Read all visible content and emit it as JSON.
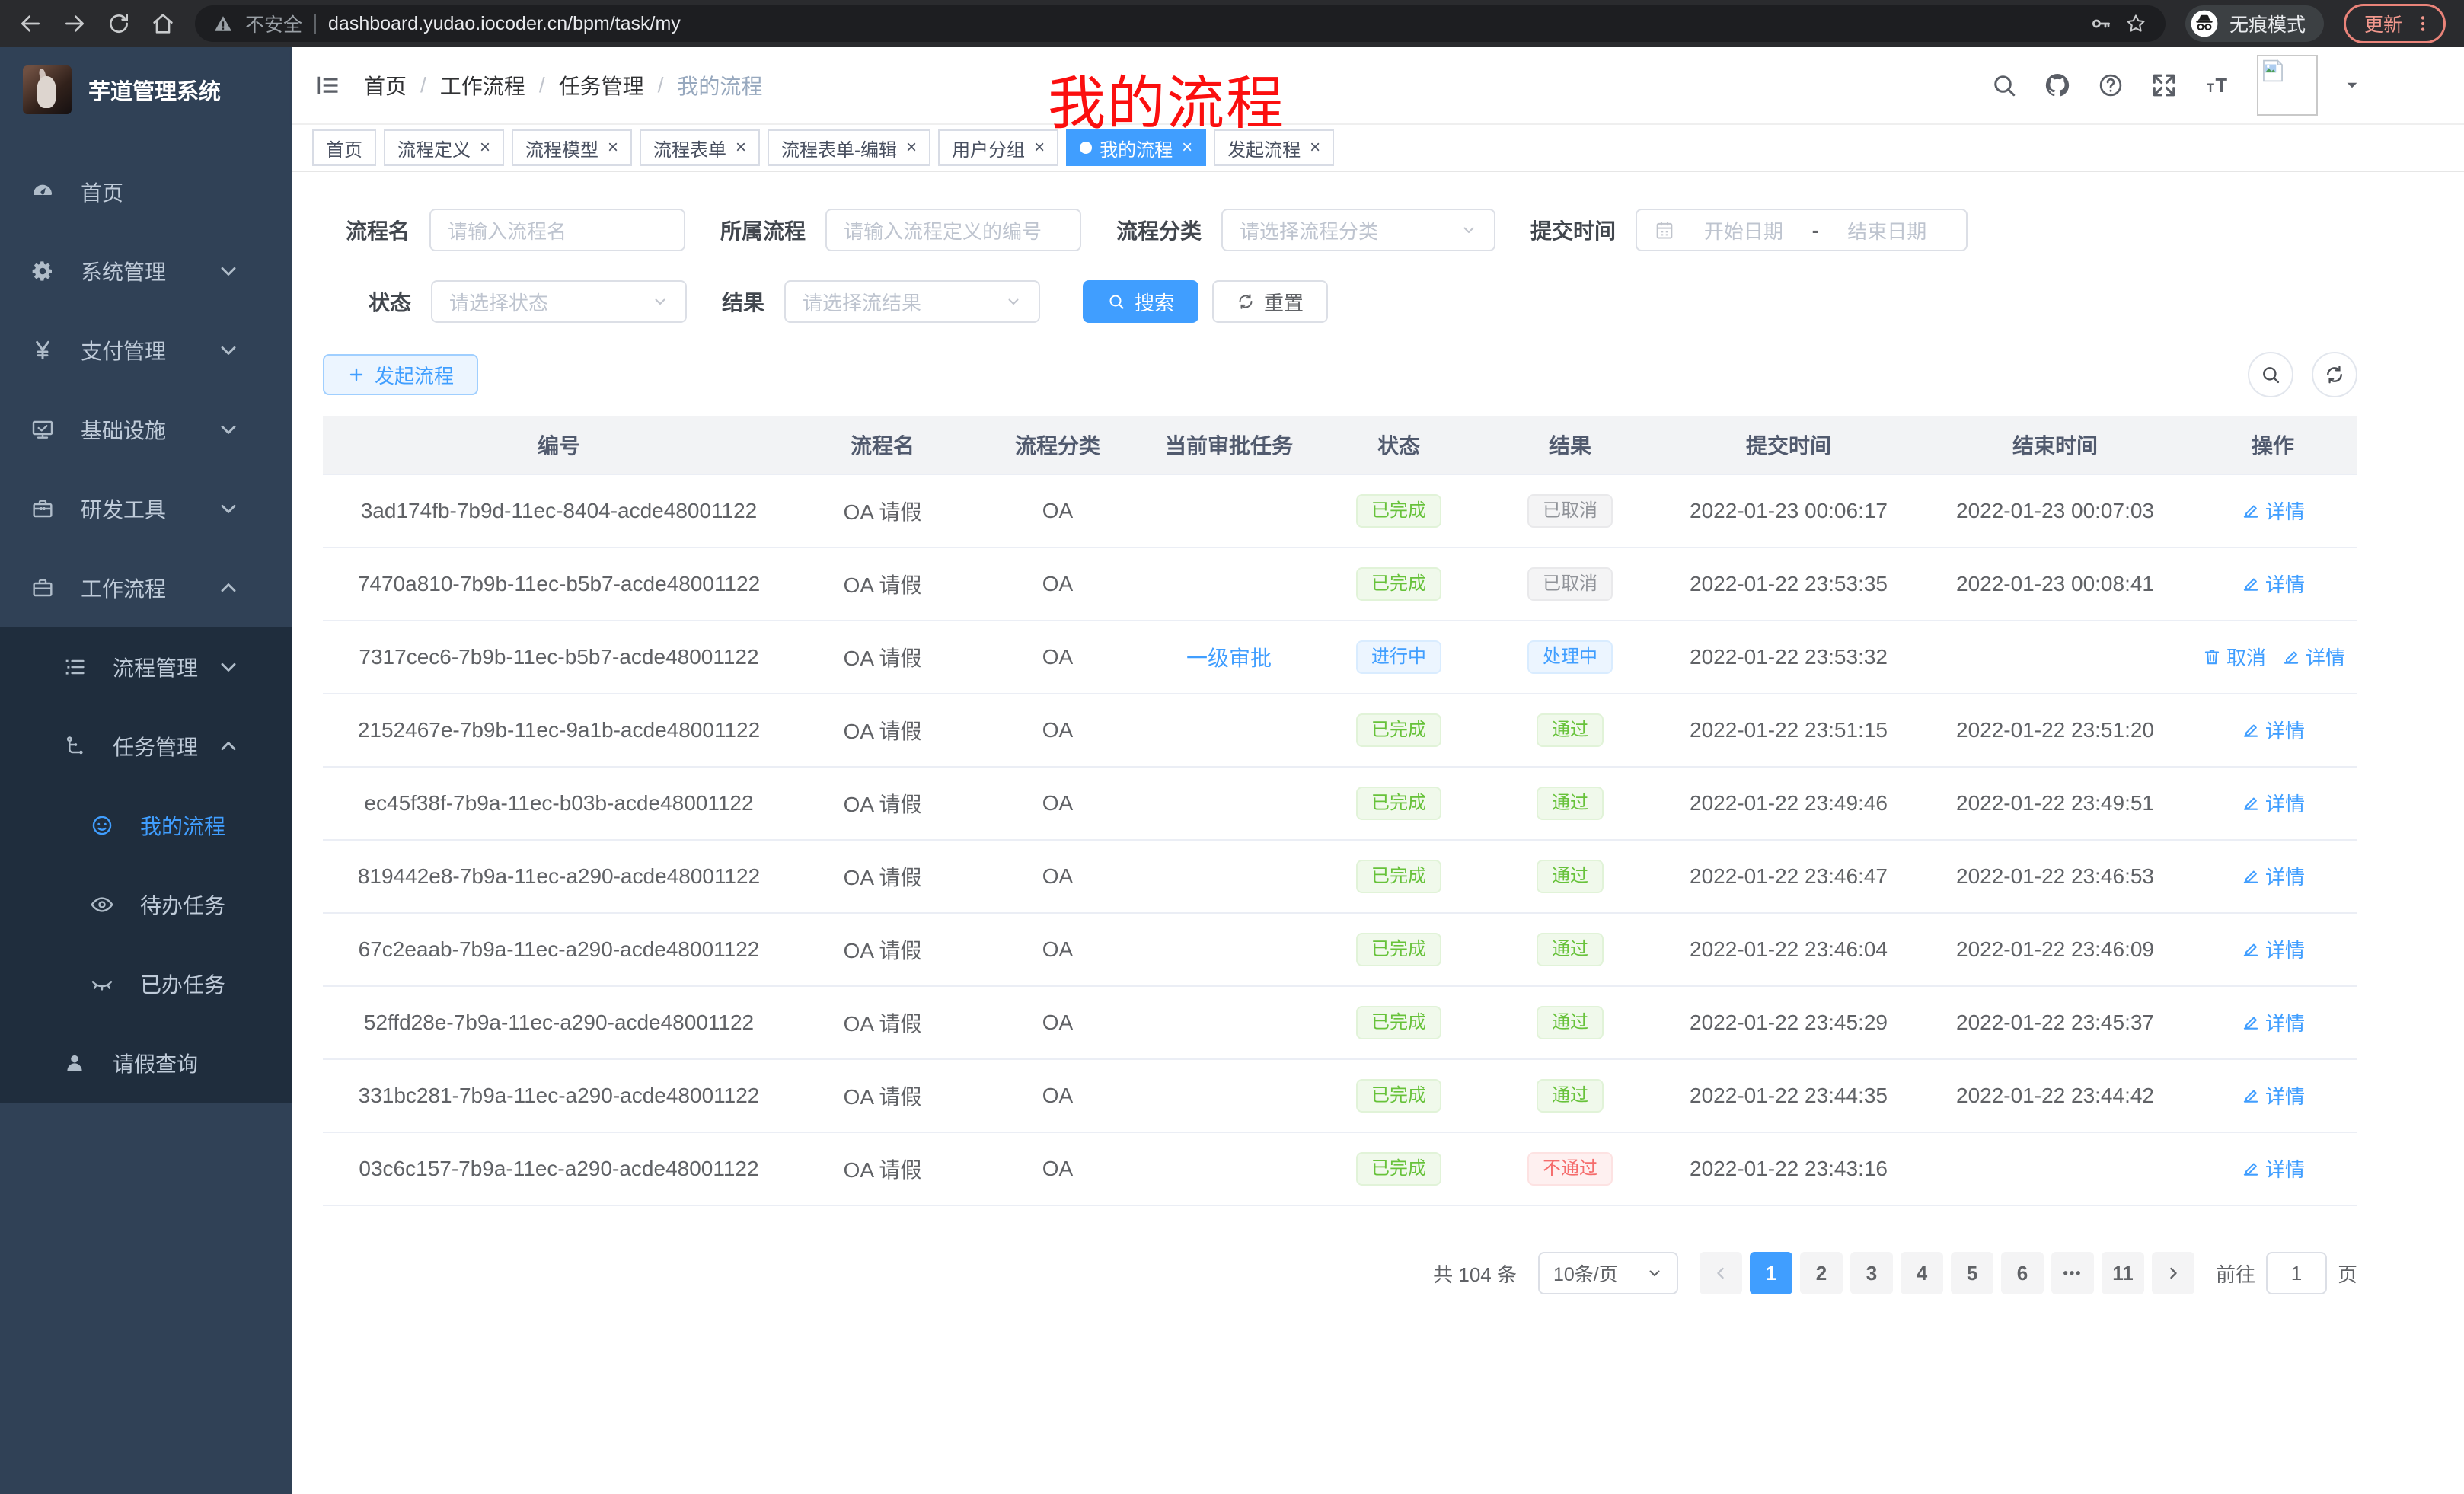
{
  "colors": {
    "accent": "#409eff",
    "success": "#67c23a",
    "danger": "#f56c6c",
    "info": "#909399",
    "annotation_red": "#fb0f0f",
    "sidebar_bg": "#304156",
    "submenu_bg": "#1f2d3d"
  },
  "browser": {
    "security_text": "不安全",
    "url": "dashboard.yudao.iocoder.cn/bpm/task/my",
    "incognito_label": "无痕模式",
    "update_label": "更新"
  },
  "sidebar": {
    "app_title": "芋道管理系统",
    "items": [
      {
        "label": "首页",
        "icon": "gauge",
        "depth": 0,
        "sub": false
      },
      {
        "label": "系统管理",
        "icon": "gear",
        "depth": 0,
        "chevron": "down",
        "sub": false
      },
      {
        "label": "支付管理",
        "icon": "yen",
        "depth": 0,
        "chevron": "down",
        "sub": false
      },
      {
        "label": "基础设施",
        "icon": "monitor",
        "depth": 0,
        "chevron": "down",
        "sub": false
      },
      {
        "label": "研发工具",
        "icon": "toolbox",
        "depth": 0,
        "chevron": "down",
        "sub": false
      },
      {
        "label": "工作流程",
        "icon": "briefcase",
        "depth": 0,
        "chevron": "up",
        "sub": false
      },
      {
        "label": "流程管理",
        "icon": "list-tree",
        "depth": 1,
        "chevron": "down",
        "sub": true
      },
      {
        "label": "任务管理",
        "icon": "flow",
        "depth": 1,
        "chevron": "up",
        "sub": true
      },
      {
        "label": "我的流程",
        "icon": "face",
        "depth": 2,
        "active": true,
        "sub": true
      },
      {
        "label": "待办任务",
        "icon": "eye",
        "depth": 2,
        "sub": true
      },
      {
        "label": "已办任务",
        "icon": "eye-closed",
        "depth": 2,
        "sub": true
      },
      {
        "label": "请假查询",
        "icon": "user",
        "depth": 1,
        "sub": true
      }
    ]
  },
  "navbar": {
    "breadcrumb": [
      "首页",
      "工作流程",
      "任务管理",
      "我的流程"
    ]
  },
  "annotation": "我的流程",
  "tabs": [
    {
      "label": "首页",
      "closable": false,
      "active": false
    },
    {
      "label": "流程定义",
      "closable": true,
      "active": false
    },
    {
      "label": "流程模型",
      "closable": true,
      "active": false
    },
    {
      "label": "流程表单",
      "closable": true,
      "active": false
    },
    {
      "label": "流程表单-编辑",
      "closable": true,
      "active": false
    },
    {
      "label": "用户分组",
      "closable": true,
      "active": false
    },
    {
      "label": "我的流程",
      "closable": true,
      "active": true
    },
    {
      "label": "发起流程",
      "closable": true,
      "active": false
    }
  ],
  "filters": {
    "process_name": {
      "label": "流程名",
      "placeholder": "请输入流程名"
    },
    "process_def": {
      "label": "所属流程",
      "placeholder": "请输入流程定义的编号"
    },
    "category": {
      "label": "流程分类",
      "placeholder": "请选择流程分类"
    },
    "submit_time": {
      "label": "提交时间",
      "start_placeholder": "开始日期",
      "separator": "-",
      "end_placeholder": "结束日期"
    },
    "status": {
      "label": "状态",
      "placeholder": "请选择状态"
    },
    "result": {
      "label": "结果",
      "placeholder": "请选择流结果"
    },
    "search_label": "搜索",
    "reset_label": "重置"
  },
  "toolbar": {
    "create_label": "发起流程"
  },
  "table": {
    "columns": [
      "编号",
      "流程名",
      "流程分类",
      "当前审批任务",
      "状态",
      "结果",
      "提交时间",
      "结束时间",
      "操作"
    ],
    "rows": [
      {
        "id": "3ad174fb-7b9d-11ec-8404-acde48001122",
        "name": "OA 请假",
        "category": "OA",
        "task": "",
        "status": "已完成",
        "status_type": "success",
        "result": "已取消",
        "result_type": "info",
        "submit": "2022-01-23 00:06:17",
        "end": "2022-01-23 00:07:03",
        "actions": [
          {
            "label": "详情",
            "icon": "edit"
          }
        ]
      },
      {
        "id": "7470a810-7b9b-11ec-b5b7-acde48001122",
        "name": "OA 请假",
        "category": "OA",
        "task": "",
        "status": "已完成",
        "status_type": "success",
        "result": "已取消",
        "result_type": "info",
        "submit": "2022-01-22 23:53:35",
        "end": "2022-01-23 00:08:41",
        "actions": [
          {
            "label": "详情",
            "icon": "edit"
          }
        ]
      },
      {
        "id": "7317cec6-7b9b-11ec-b5b7-acde48001122",
        "name": "OA 请假",
        "category": "OA",
        "task": "一级审批",
        "status": "进行中",
        "status_type": "primary",
        "result": "处理中",
        "result_type": "primary",
        "submit": "2022-01-22 23:53:32",
        "end": "",
        "actions": [
          {
            "label": "取消",
            "icon": "trash"
          },
          {
            "label": "详情",
            "icon": "edit"
          }
        ]
      },
      {
        "id": "2152467e-7b9b-11ec-9a1b-acde48001122",
        "name": "OA 请假",
        "category": "OA",
        "task": "",
        "status": "已完成",
        "status_type": "success",
        "result": "通过",
        "result_type": "success",
        "submit": "2022-01-22 23:51:15",
        "end": "2022-01-22 23:51:20",
        "actions": [
          {
            "label": "详情",
            "icon": "edit"
          }
        ]
      },
      {
        "id": "ec45f38f-7b9a-11ec-b03b-acde48001122",
        "name": "OA 请假",
        "category": "OA",
        "task": "",
        "status": "已完成",
        "status_type": "success",
        "result": "通过",
        "result_type": "success",
        "submit": "2022-01-22 23:49:46",
        "end": "2022-01-22 23:49:51",
        "actions": [
          {
            "label": "详情",
            "icon": "edit"
          }
        ]
      },
      {
        "id": "819442e8-7b9a-11ec-a290-acde48001122",
        "name": "OA 请假",
        "category": "OA",
        "task": "",
        "status": "已完成",
        "status_type": "success",
        "result": "通过",
        "result_type": "success",
        "submit": "2022-01-22 23:46:47",
        "end": "2022-01-22 23:46:53",
        "actions": [
          {
            "label": "详情",
            "icon": "edit"
          }
        ]
      },
      {
        "id": "67c2eaab-7b9a-11ec-a290-acde48001122",
        "name": "OA 请假",
        "category": "OA",
        "task": "",
        "status": "已完成",
        "status_type": "success",
        "result": "通过",
        "result_type": "success",
        "submit": "2022-01-22 23:46:04",
        "end": "2022-01-22 23:46:09",
        "actions": [
          {
            "label": "详情",
            "icon": "edit"
          }
        ]
      },
      {
        "id": "52ffd28e-7b9a-11ec-a290-acde48001122",
        "name": "OA 请假",
        "category": "OA",
        "task": "",
        "status": "已完成",
        "status_type": "success",
        "result": "通过",
        "result_type": "success",
        "submit": "2022-01-22 23:45:29",
        "end": "2022-01-22 23:45:37",
        "actions": [
          {
            "label": "详情",
            "icon": "edit"
          }
        ]
      },
      {
        "id": "331bc281-7b9a-11ec-a290-acde48001122",
        "name": "OA 请假",
        "category": "OA",
        "task": "",
        "status": "已完成",
        "status_type": "success",
        "result": "通过",
        "result_type": "success",
        "submit": "2022-01-22 23:44:35",
        "end": "2022-01-22 23:44:42",
        "actions": [
          {
            "label": "详情",
            "icon": "edit"
          }
        ]
      },
      {
        "id": "03c6c157-7b9a-11ec-a290-acde48001122",
        "name": "OA 请假",
        "category": "OA",
        "task": "",
        "status": "已完成",
        "status_type": "success",
        "result": "不通过",
        "result_type": "danger",
        "submit": "2022-01-22 23:43:16",
        "end": "",
        "actions": [
          {
            "label": "详情",
            "icon": "edit"
          }
        ]
      }
    ]
  },
  "pagination": {
    "total": "共 104 条",
    "page_size": "10条/页",
    "pages": [
      "1",
      "2",
      "3",
      "4",
      "5",
      "6",
      "...",
      "11"
    ],
    "active": "1",
    "goto_label": "前往",
    "goto_value": "1",
    "goto_suffix": "页"
  }
}
